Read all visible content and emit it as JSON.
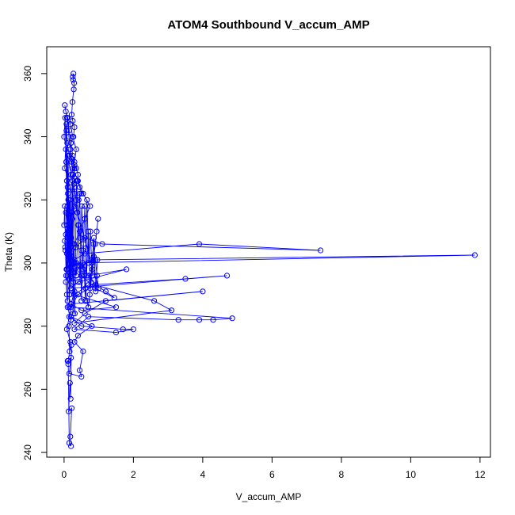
{
  "chart_data": {
    "type": "scatter",
    "title": "ATOM4 Southbound V_accum_AMP",
    "xlabel": "V_accum_AMP",
    "ylabel": "Theta (K)",
    "xlim": [
      -0.5,
      12.3
    ],
    "ylim": [
      238.5,
      368.5
    ],
    "x_ticks": [
      0,
      2,
      4,
      6,
      8,
      10,
      12
    ],
    "y_ticks": [
      240,
      260,
      280,
      300,
      320,
      340,
      360
    ],
    "grid": false,
    "legend": "none",
    "marker": "open-circle",
    "connected": true,
    "color": "#0000ff",
    "series": [
      {
        "x": [
          0.25,
          0.27,
          0.26,
          0.29,
          0.28,
          0.24,
          0.22,
          0.25,
          0.3,
          0.27,
          0.2,
          0.18,
          0.15,
          0.22,
          0.3,
          0.35,
          0.4,
          0.38,
          0.45,
          0.5,
          0.42,
          0.3,
          0.22,
          0.15,
          0.1,
          0.05,
          0.02,
          0.03,
          0.08,
          0.12,
          0.2,
          0.35,
          0.55,
          0.7,
          0.9,
          1.2,
          1.45,
          0.9,
          0.5,
          0.3,
          0.2,
          0.35,
          0.6,
          1.1,
          7.4,
          3.9,
          0.6,
          0.3,
          0.45,
          0.25,
          0.1,
          0.35,
          11.85,
          0.8,
          0.5,
          0.3,
          0.15,
          1.8,
          0.4,
          0.2,
          4.7,
          3.5,
          0.7,
          0.3,
          1.5,
          0.5,
          0.2,
          4.0,
          1.2,
          0.6,
          0.3,
          3.1,
          2.6,
          0.9,
          0.4,
          0.2,
          4.85,
          4.3,
          3.9,
          3.3,
          0.7,
          0.3,
          1.5,
          2.0,
          1.7,
          0.5,
          0.2,
          0.8,
          0.4,
          0.3,
          0.55,
          0.45,
          0.5,
          0.15,
          0.2,
          0.1,
          0.12,
          0.18,
          0.08,
          0.15,
          0.2,
          0.3,
          0.25,
          0.22,
          0.2,
          0.15,
          0.1,
          0.08,
          0.05,
          0.12,
          0.1,
          0.2,
          0.3,
          0.35,
          0.25,
          0.18,
          0.1,
          0.05,
          0.02,
          0.08,
          0.15,
          0.2,
          0.25,
          0.3,
          0.28
        ],
        "y": [
          359,
          360,
          358,
          357,
          355,
          351,
          347,
          345,
          343,
          340,
          338,
          336,
          334,
          333,
          331,
          330,
          328,
          326,
          324,
          322,
          320,
          318,
          315,
          313,
          311,
          309,
          307,
          305,
          303,
          301,
          299,
          300,
          298,
          296,
          293,
          291,
          289,
          292,
          296,
          299,
          302,
          305,
          308,
          306,
          304,
          306,
          303,
          301,
          299,
          297,
          296,
          300,
          302.5,
          301,
          299,
          297,
          295,
          298,
          294,
          292,
          296,
          295,
          293,
          290,
          286,
          285,
          287,
          291,
          288,
          284,
          281,
          285,
          288,
          293,
          290,
          286,
          282.5,
          282,
          282,
          282,
          283,
          279,
          278,
          279,
          279,
          280,
          283,
          280,
          277,
          275,
          272,
          266,
          264,
          265,
          270,
          269,
          268,
          275,
          279,
          283,
          287,
          291,
          295,
          298,
          301,
          304,
          308,
          312,
          316,
          320,
          324,
          328,
          332,
          336,
          340,
          344,
          346,
          348,
          350,
          346,
          342,
          338,
          334,
          330,
          325
        ]
      },
      {
        "x": [
          0.0,
          0.02,
          0.04,
          0.06,
          0.08,
          0.1,
          0.12,
          0.14,
          0.16,
          0.18,
          0.2,
          0.22,
          0.24,
          0.26,
          0.28,
          0.3,
          0.0,
          0.03,
          0.06,
          0.09,
          0.12,
          0.15,
          0.18,
          0.21,
          0.24,
          0.27,
          0.05,
          0.1,
          0.15,
          0.2,
          0.25,
          0.3,
          0.35,
          0.4,
          0.45,
          0.5,
          0.55,
          0.6,
          0.65,
          0.7,
          0.75,
          0.8,
          0.85,
          0.9,
          0.95,
          1.0,
          0.02,
          0.07,
          0.11,
          0.16,
          0.21,
          0.26,
          0.31,
          0.36,
          0.41,
          0.46,
          0.51,
          0.56,
          0.61,
          0.66,
          0.71,
          0.76,
          0.81,
          0.86,
          0.91,
          0.96
        ],
        "y": [
          312,
          318,
          304,
          296,
          326,
          288,
          334,
          300,
          320,
          308,
          292,
          316,
          328,
          284,
          306,
          322,
          340,
          346,
          332,
          298,
          310,
          286,
          324,
          302,
          314,
          294,
          336,
          318,
          290,
          308,
          326,
          300,
          296,
          312,
          322,
          288,
          304,
          318,
          296,
          310,
          292,
          300,
          306,
          301,
          296,
          292,
          330,
          344,
          322,
          290,
          316,
          300,
          284,
          326,
          312,
          294,
          318,
          306,
          288,
          320,
          300,
          310,
          296,
          308,
          291,
          301
        ]
      },
      {
        "x": [
          0.12,
          0.15,
          0.2,
          0.18,
          0.22,
          0.13,
          0.17,
          0.19,
          0.21,
          0.16,
          0.14,
          0.2,
          0.1,
          0.08,
          0.05,
          0.07,
          0.12,
          0.3,
          0.45,
          0.6,
          0.75,
          0.55,
          0.4,
          0.25,
          0.15,
          0.09,
          0.07,
          0.1,
          0.14,
          0.18,
          0.22,
          0.26,
          0.3,
          0.34,
          0.38,
          0.42,
          0.46,
          0.5,
          0.54,
          0.58,
          0.62,
          0.66,
          0.7,
          0.74,
          0.78,
          0.82,
          0.86,
          0.9,
          0.94,
          0.98
        ],
        "y": [
          269,
          243,
          242,
          245,
          254,
          253,
          262,
          257,
          274,
          272,
          280,
          282,
          286,
          290,
          294,
          298,
          302,
          306,
          310,
          314,
          318,
          322,
          326,
          330,
          334,
          338,
          342,
          346,
          340,
          336,
          332,
          328,
          324,
          320,
          316,
          312,
          308,
          304,
          300,
          296,
          292,
          288,
          286,
          290,
          294,
          298,
          302,
          306,
          310,
          314
        ]
      }
    ]
  }
}
